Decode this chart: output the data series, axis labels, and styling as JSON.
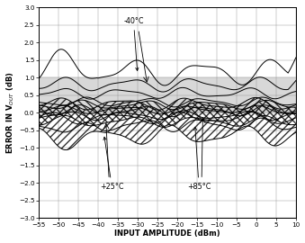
{
  "xlim": [
    -55,
    10
  ],
  "ylim": [
    -3.0,
    3.0
  ],
  "xticks": [
    -55,
    -50,
    -45,
    -40,
    -35,
    -30,
    -25,
    -20,
    -15,
    -10,
    -5,
    0,
    5,
    10
  ],
  "yticks": [
    -3.0,
    -2.5,
    -2.0,
    -1.5,
    -1.0,
    -0.5,
    0.0,
    0.5,
    1.0,
    1.5,
    2.0,
    2.5,
    3.0
  ],
  "xlabel": "INPUT AMPLITUDE (dBm)",
  "ylabel": "ERROR IN V$_{OUT}$ (dB)",
  "shaded_region": [
    0.0,
    1.0
  ],
  "shaded_color": "#d8d8d8"
}
